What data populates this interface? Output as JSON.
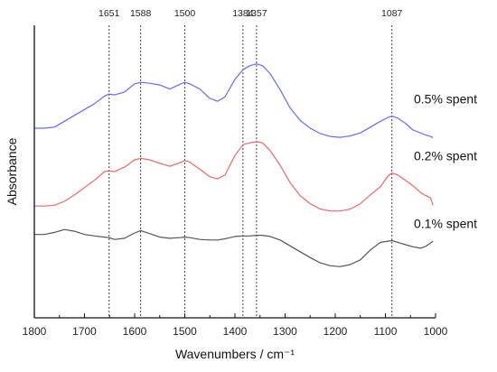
{
  "chart_data": {
    "type": "line",
    "title": "",
    "xlabel": "Wavenumbers / cm⁻¹",
    "ylabel": "Absorbance",
    "xlim": [
      1800,
      1000
    ],
    "x_reversed": true,
    "ylim": [
      0,
      1
    ],
    "y_ticks_shown": false,
    "grid": false,
    "x_ticks": [
      1800,
      1700,
      1600,
      1500,
      1400,
      1300,
      1200,
      1100,
      1000
    ],
    "x_tick_labels": [
      "1800",
      "1700",
      "1600",
      "1500",
      "1400",
      "1300",
      "1200",
      "1100",
      "1000"
    ],
    "peak_markers": [
      {
        "x": 1651,
        "label": "1651"
      },
      {
        "x": 1588,
        "label": "1588"
      },
      {
        "x": 1500,
        "label": "1500"
      },
      {
        "x": 1384,
        "label": "1384"
      },
      {
        "x": 1357,
        "label": "1357"
      },
      {
        "x": 1087,
        "label": "1087"
      }
    ],
    "series": [
      {
        "name": "0.5% spent",
        "color": "#6b6bf0",
        "x": [
          1800,
          1780,
          1760,
          1740,
          1720,
          1700,
          1680,
          1660,
          1651,
          1640,
          1620,
          1600,
          1588,
          1570,
          1550,
          1530,
          1510,
          1500,
          1490,
          1470,
          1450,
          1435,
          1420,
          1400,
          1384,
          1370,
          1357,
          1345,
          1330,
          1310,
          1290,
          1270,
          1250,
          1230,
          1210,
          1190,
          1170,
          1150,
          1130,
          1110,
          1095,
          1087,
          1075,
          1060,
          1045,
          1030,
          1020,
          1010,
          1005
        ],
        "y": [
          0.648,
          0.648,
          0.652,
          0.672,
          0.692,
          0.712,
          0.732,
          0.758,
          0.765,
          0.762,
          0.772,
          0.8,
          0.805,
          0.802,
          0.796,
          0.782,
          0.798,
          0.805,
          0.8,
          0.782,
          0.75,
          0.74,
          0.755,
          0.815,
          0.848,
          0.862,
          0.868,
          0.862,
          0.835,
          0.78,
          0.718,
          0.675,
          0.648,
          0.63,
          0.62,
          0.617,
          0.622,
          0.632,
          0.652,
          0.672,
          0.685,
          0.69,
          0.682,
          0.665,
          0.642,
          0.632,
          0.625,
          0.62,
          0.616
        ]
      },
      {
        "name": "0.2% spent",
        "color": "#e86a6a",
        "x": [
          1800,
          1780,
          1760,
          1740,
          1720,
          1700,
          1680,
          1660,
          1651,
          1640,
          1620,
          1600,
          1588,
          1570,
          1550,
          1530,
          1510,
          1500,
          1490,
          1470,
          1450,
          1435,
          1420,
          1400,
          1384,
          1370,
          1357,
          1345,
          1330,
          1310,
          1290,
          1270,
          1250,
          1230,
          1210,
          1190,
          1170,
          1150,
          1130,
          1110,
          1095,
          1087,
          1075,
          1060,
          1045,
          1030,
          1020,
          1010,
          1005
        ],
        "y": [
          0.382,
          0.382,
          0.385,
          0.398,
          0.42,
          0.445,
          0.47,
          0.5,
          0.502,
          0.5,
          0.515,
          0.54,
          0.545,
          0.54,
          0.528,
          0.518,
          0.53,
          0.538,
          0.532,
          0.508,
          0.482,
          0.475,
          0.488,
          0.555,
          0.592,
          0.598,
          0.602,
          0.598,
          0.572,
          0.522,
          0.462,
          0.418,
          0.39,
          0.372,
          0.365,
          0.365,
          0.372,
          0.39,
          0.42,
          0.448,
          0.485,
          0.495,
          0.488,
          0.47,
          0.452,
          0.428,
          0.418,
          0.41,
          0.385
        ]
      },
      {
        "name": "0.1% spent",
        "color": "#555555",
        "x": [
          1800,
          1780,
          1760,
          1740,
          1720,
          1700,
          1680,
          1660,
          1651,
          1640,
          1620,
          1600,
          1588,
          1570,
          1550,
          1530,
          1510,
          1500,
          1490,
          1470,
          1450,
          1435,
          1420,
          1400,
          1384,
          1370,
          1357,
          1345,
          1330,
          1310,
          1290,
          1270,
          1250,
          1230,
          1210,
          1190,
          1170,
          1150,
          1130,
          1110,
          1095,
          1087,
          1075,
          1060,
          1045,
          1030,
          1020,
          1010,
          1005
        ],
        "y": [
          0.285,
          0.285,
          0.292,
          0.302,
          0.296,
          0.285,
          0.28,
          0.276,
          0.274,
          0.268,
          0.272,
          0.29,
          0.298,
          0.288,
          0.276,
          0.272,
          0.274,
          0.276,
          0.274,
          0.268,
          0.266,
          0.266,
          0.27,
          0.278,
          0.28,
          0.28,
          0.282,
          0.282,
          0.278,
          0.266,
          0.246,
          0.226,
          0.206,
          0.188,
          0.178,
          0.175,
          0.182,
          0.198,
          0.232,
          0.258,
          0.262,
          0.264,
          0.258,
          0.25,
          0.243,
          0.238,
          0.244,
          0.256,
          0.262
        ]
      }
    ]
  }
}
